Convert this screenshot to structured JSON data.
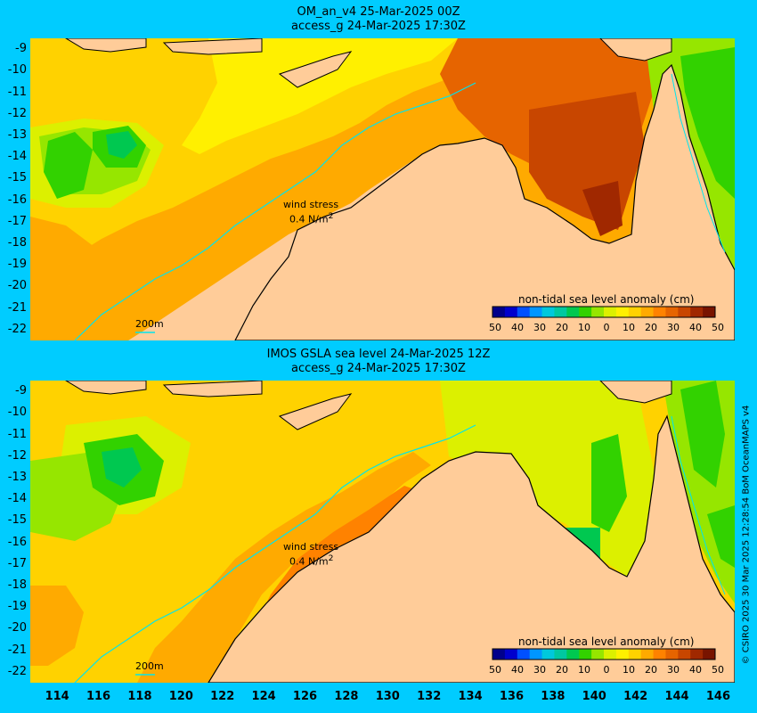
{
  "panels": [
    {
      "title_line1": "OM_an_v4  25-Mar-2025 00Z",
      "title_line2": "access_g 24-Mar-2025 17:30Z",
      "wind_label": "wind stress",
      "wind_scale": "0.4 N/m",
      "wind_scale_sup": "2",
      "depth_label": "200m",
      "colorbar_title": "non-tidal sea level anomaly (cm)"
    },
    {
      "title_line1": "IMOS GSLA sea level  24-Mar-2025 12Z",
      "title_line2": "access_g 24-Mar-2025 17:30Z",
      "wind_label": "wind stress",
      "wind_scale": "0.4 N/m",
      "wind_scale_sup": "2",
      "depth_label": "200m",
      "colorbar_title": "non-tidal sea level anomaly (cm)"
    }
  ],
  "colorbar": {
    "tick_labels": [
      "50",
      "40",
      "30",
      "20",
      "10",
      "0",
      "10",
      "20",
      "30",
      "40",
      "50"
    ],
    "colors": [
      "#00008b",
      "#0000cd",
      "#0050ff",
      "#0096ff",
      "#00c8dc",
      "#00c8a0",
      "#00c850",
      "#32d200",
      "#96e600",
      "#dcf000",
      "#fff000",
      "#ffd200",
      "#ffaa00",
      "#ff8200",
      "#e66400",
      "#c84600",
      "#a02800",
      "#781400"
    ]
  },
  "axes": {
    "lat_labels": [
      "-9",
      "-10",
      "-11",
      "-12",
      "-13",
      "-14",
      "-15",
      "-16",
      "-17",
      "-18",
      "-19",
      "-20",
      "-21",
      "-22"
    ],
    "lon_labels": [
      "114",
      "116",
      "118",
      "120",
      "122",
      "124",
      "126",
      "128",
      "130",
      "132",
      "134",
      "136",
      "138",
      "140",
      "142",
      "144",
      "146"
    ],
    "lat_range": [
      -22.5,
      -8.5
    ],
    "lon_range": [
      112.7,
      146.8
    ]
  },
  "credit": "© CSIRO 2025   30 Mar 2025 12:28:54 BoM OceanMAPS v4",
  "colors": {
    "background": "#00ccff",
    "land": "#ffcc99",
    "shelf_contour": "#00e5ee",
    "coastline": "#000000"
  }
}
